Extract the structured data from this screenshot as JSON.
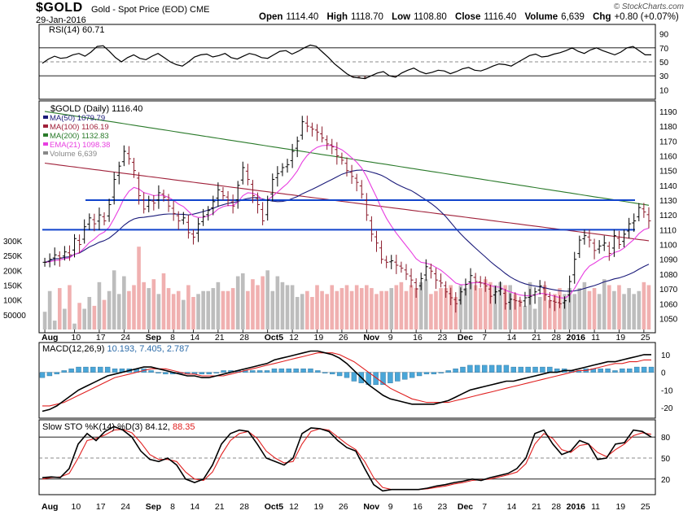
{
  "header": {
    "symbol": "$GOLD",
    "description": "Gold - Spot Price (EOD)",
    "exchange": "CME",
    "date": "29-Jan-2016",
    "open_label": "Open",
    "open": "1114.40",
    "high_label": "High",
    "high": "1118.70",
    "low_label": "Low",
    "low": "1108.80",
    "close_label": "Close",
    "close": "1116.40",
    "volume_label": "Volume",
    "volume": "6,639",
    "chg_label": "Chg",
    "chg": "+0.80 (+0.07%)",
    "credit": "© StockCharts.com"
  },
  "colors": {
    "ma50": "#1b1b7a",
    "ma100": "#a0213a",
    "ma200": "#2a7a2a",
    "ema21": "#e83ee0",
    "macd_line": "#000000",
    "signal_line": "#e02020",
    "histogram": "#4aa6d8",
    "stoch_k": "#000000",
    "stoch_d": "#e02020",
    "hline": "#1144cc",
    "vol_up": "#bdbdbd",
    "vol_down": "#f0b0b0"
  },
  "chart_data": [
    {
      "type": "line",
      "panel": "rsi",
      "title": "RSI(14) 60.71",
      "y_ticks": [
        10,
        30,
        50,
        70,
        90
      ],
      "ylim": [
        0,
        100
      ],
      "series": [
        {
          "name": "RSI(14)",
          "values": [
            48,
            54,
            58,
            55,
            56,
            60,
            62,
            58,
            64,
            72,
            73,
            65,
            56,
            50,
            56,
            60,
            55,
            53,
            58,
            62,
            56,
            50,
            46,
            44,
            50,
            57,
            60,
            61,
            57,
            59,
            62,
            56,
            54,
            58,
            62,
            60,
            56,
            55,
            60,
            65,
            66,
            61,
            65,
            70,
            74,
            72,
            64,
            56,
            47,
            40,
            33,
            28,
            27,
            26,
            30,
            34,
            36,
            30,
            28,
            34,
            38,
            41,
            36,
            33,
            35,
            38,
            37,
            33,
            36,
            40,
            42,
            38,
            37,
            40,
            44,
            47,
            46,
            44,
            49,
            54,
            59,
            61,
            57,
            58,
            61,
            63,
            66,
            70,
            65,
            62,
            67,
            70,
            66,
            63,
            60,
            64,
            70,
            72,
            66,
            60,
            60
          ]
        }
      ]
    },
    {
      "type": "ohlc",
      "panel": "price",
      "title": "$GOLD (Daily) 1116.40",
      "legend": [
        {
          "name": "MA(50)",
          "value": "1079.79"
        },
        {
          "name": "MA(100)",
          "value": "1106.19"
        },
        {
          "name": "MA(200)",
          "value": "1132.83"
        },
        {
          "name": "EMA(21)",
          "value": "1098.38"
        },
        {
          "name": "Volume",
          "value": "6,639"
        }
      ],
      "x_tick_labels": [
        {
          "label": "Aug",
          "bar": 0
        },
        {
          "label": "10",
          "bar": 6
        },
        {
          "label": "17",
          "bar": 11
        },
        {
          "label": "24",
          "bar": 16
        },
        {
          "label": "Sep",
          "bar": 21
        },
        {
          "label": "8",
          "bar": 26
        },
        {
          "label": "14",
          "bar": 30
        },
        {
          "label": "21",
          "bar": 35
        },
        {
          "label": "28",
          "bar": 40
        },
        {
          "label": "Oct5",
          "bar": 45
        },
        {
          "label": "12",
          "bar": 50
        },
        {
          "label": "19",
          "bar": 55
        },
        {
          "label": "26",
          "bar": 60
        },
        {
          "label": "Nov",
          "bar": 65
        },
        {
          "label": "9",
          "bar": 70
        },
        {
          "label": "16",
          "bar": 75
        },
        {
          "label": "23",
          "bar": 80
        },
        {
          "label": "Dec",
          "bar": 84
        },
        {
          "label": "7",
          "bar": 89
        },
        {
          "label": "14",
          "bar": 94
        },
        {
          "label": "21",
          "bar": 99
        },
        {
          "label": "28",
          "bar": 103
        },
        {
          "label": "2016",
          "bar": 106
        },
        {
          "label": "11",
          "bar": 111
        },
        {
          "label": "19",
          "bar": 116
        },
        {
          "label": "25",
          "bar": 121
        }
      ],
      "y_ticks": [
        1050,
        1060,
        1070,
        1080,
        1090,
        1100,
        1110,
        1120,
        1130,
        1140,
        1150,
        1160,
        1170,
        1180,
        1190
      ],
      "ylim": [
        1042,
        1196
      ],
      "volume_ticks": [
        {
          "label": "300K",
          "value": 300000
        },
        {
          "label": "250K",
          "value": 250000
        },
        {
          "label": "200K",
          "value": 200000
        },
        {
          "label": "150K",
          "value": 150000
        },
        {
          "label": "100K",
          "value": 100000
        },
        {
          "label": "50000",
          "value": 50000
        }
      ],
      "horizontal_lines": [
        1110,
        1130
      ],
      "closes": [
        1088,
        1090,
        1093,
        1091,
        1095,
        1093,
        1104,
        1100,
        1112,
        1118,
        1114,
        1120,
        1116,
        1127,
        1144,
        1153,
        1163,
        1158,
        1150,
        1133,
        1124,
        1130,
        1128,
        1135,
        1132,
        1126,
        1121,
        1116,
        1118,
        1108,
        1105,
        1114,
        1119,
        1123,
        1129,
        1137,
        1133,
        1130,
        1126,
        1140,
        1152,
        1144,
        1133,
        1127,
        1116,
        1130,
        1144,
        1148,
        1152,
        1154,
        1163,
        1170,
        1183,
        1180,
        1178,
        1176,
        1172,
        1168,
        1166,
        1160,
        1157,
        1150,
        1146,
        1142,
        1134,
        1120,
        1107,
        1101,
        1090,
        1088,
        1089,
        1086,
        1084,
        1080,
        1076,
        1070,
        1077,
        1085,
        1082,
        1076,
        1074,
        1068,
        1064,
        1060,
        1068,
        1073,
        1079,
        1075,
        1074,
        1072,
        1065,
        1068,
        1070,
        1060,
        1063,
        1062,
        1061,
        1064,
        1065,
        1068,
        1072,
        1066,
        1062,
        1061,
        1060,
        1062,
        1075,
        1090,
        1103,
        1106,
        1103,
        1096,
        1099,
        1101,
        1094,
        1106,
        1100,
        1107,
        1114,
        1116,
        1125,
        1122,
        1116
      ],
      "volume": [
        60000,
        130000,
        30000,
        140000,
        70000,
        150000,
        20000,
        90000,
        70000,
        110000,
        80000,
        160000,
        100000,
        130000,
        200000,
        120000,
        180000,
        130000,
        150000,
        280000,
        160000,
        140000,
        170000,
        120000,
        190000,
        140000,
        120000,
        130000,
        100000,
        150000,
        110000,
        120000,
        130000,
        130000,
        140000,
        160000,
        130000,
        130000,
        140000,
        180000,
        190000,
        130000,
        170000,
        150000,
        180000,
        200000,
        130000,
        180000,
        160000,
        150000,
        150000,
        110000,
        120000,
        130000,
        110000,
        150000,
        130000,
        120000,
        150000,
        130000,
        140000,
        150000,
        130000,
        150000,
        140000,
        150000,
        140000,
        120000,
        130000,
        130000,
        140000,
        150000,
        160000,
        130000,
        150000,
        140000,
        160000,
        170000,
        120000,
        130000,
        140000,
        140000,
        150000,
        110000,
        150000,
        140000,
        160000,
        150000,
        140000,
        170000,
        160000,
        150000,
        160000,
        150000,
        150000,
        120000,
        100000,
        80000,
        160000,
        70000,
        110000,
        150000,
        100000,
        120000,
        140000,
        120000,
        140000,
        120000,
        140000,
        160000,
        130000,
        140000,
        120000,
        170000,
        150000,
        130000,
        150000,
        120000,
        140000,
        120000,
        130000,
        160000,
        150000
      ]
    },
    {
      "type": "line",
      "panel": "macd",
      "title": "MACD(12,26,9) 10.193, 7.405, 2.787",
      "y_ticks": [
        -20,
        -10,
        0,
        10
      ],
      "ylim": [
        -25,
        15
      ],
      "series": [
        {
          "name": "MACD",
          "values": [
            -22,
            -21,
            -19,
            -16,
            -13,
            -10,
            -8,
            -6,
            -4,
            -2,
            -1,
            0,
            1,
            2,
            3,
            3,
            2,
            1,
            0,
            -1,
            -2,
            -2,
            -3,
            -3,
            -2,
            -1,
            0,
            1,
            2,
            3,
            4,
            5,
            7,
            8,
            9,
            10,
            11,
            12,
            12,
            11,
            10,
            8,
            5,
            1,
            -3,
            -7,
            -10,
            -13,
            -15,
            -16,
            -17,
            -18,
            -18,
            -18,
            -18,
            -17,
            -16,
            -14,
            -12,
            -10,
            -9,
            -8,
            -7,
            -6,
            -5,
            -5,
            -4,
            -3,
            -2,
            -1,
            0,
            0,
            1,
            1,
            2,
            3,
            4,
            5,
            6,
            6,
            7,
            8,
            9,
            10,
            10
          ]
        },
        {
          "name": "Signal",
          "values": [
            -19,
            -19,
            -18,
            -17,
            -15,
            -13,
            -11,
            -9,
            -7,
            -5,
            -3,
            -2,
            -1,
            0,
            1,
            2,
            2,
            2,
            1,
            0,
            -1,
            -1,
            -2,
            -2,
            -2,
            -2,
            -1,
            0,
            1,
            2,
            3,
            4,
            5,
            6,
            7,
            8,
            9,
            10,
            11,
            11,
            11,
            10,
            8,
            6,
            3,
            0,
            -3,
            -6,
            -9,
            -11,
            -13,
            -15,
            -16,
            -17,
            -17,
            -17,
            -17,
            -16,
            -15,
            -14,
            -13,
            -12,
            -11,
            -10,
            -9,
            -8,
            -7,
            -6,
            -5,
            -4,
            -3,
            -2,
            -1,
            0,
            1,
            1,
            2,
            3,
            4,
            5,
            5,
            6,
            6,
            7,
            7
          ]
        }
      ]
    },
    {
      "type": "line",
      "panel": "stochastic",
      "title": "Slow STO %K(14) %D(3) 84.12, 88.35",
      "y_ticks": [
        20,
        50,
        80
      ],
      "ylim": [
        0,
        100
      ],
      "series": [
        {
          "name": "%K",
          "values": [
            22,
            23,
            22,
            35,
            70,
            85,
            75,
            88,
            95,
            90,
            80,
            60,
            48,
            45,
            50,
            40,
            20,
            15,
            20,
            40,
            70,
            85,
            90,
            88,
            70,
            50,
            45,
            40,
            50,
            85,
            93,
            92,
            88,
            75,
            65,
            60,
            35,
            12,
            3,
            5,
            5,
            5,
            5,
            7,
            10,
            12,
            15,
            17,
            20,
            18,
            22,
            25,
            28,
            35,
            50,
            85,
            90,
            70,
            55,
            60,
            75,
            70,
            48,
            50,
            70,
            72,
            90,
            88,
            80
          ]
        },
        {
          "name": "%D",
          "values": [
            20,
            22,
            23,
            28,
            50,
            75,
            78,
            83,
            90,
            91,
            86,
            72,
            55,
            48,
            48,
            45,
            30,
            20,
            18,
            30,
            55,
            75,
            85,
            88,
            78,
            60,
            50,
            43,
            45,
            70,
            88,
            92,
            90,
            80,
            70,
            62,
            45,
            22,
            8,
            5,
            5,
            5,
            5,
            6,
            8,
            10,
            13,
            15,
            18,
            19,
            20,
            23,
            26,
            30,
            42,
            70,
            85,
            78,
            62,
            58,
            68,
            70,
            58,
            52,
            62,
            70,
            82,
            86,
            84
          ]
        }
      ]
    }
  ]
}
